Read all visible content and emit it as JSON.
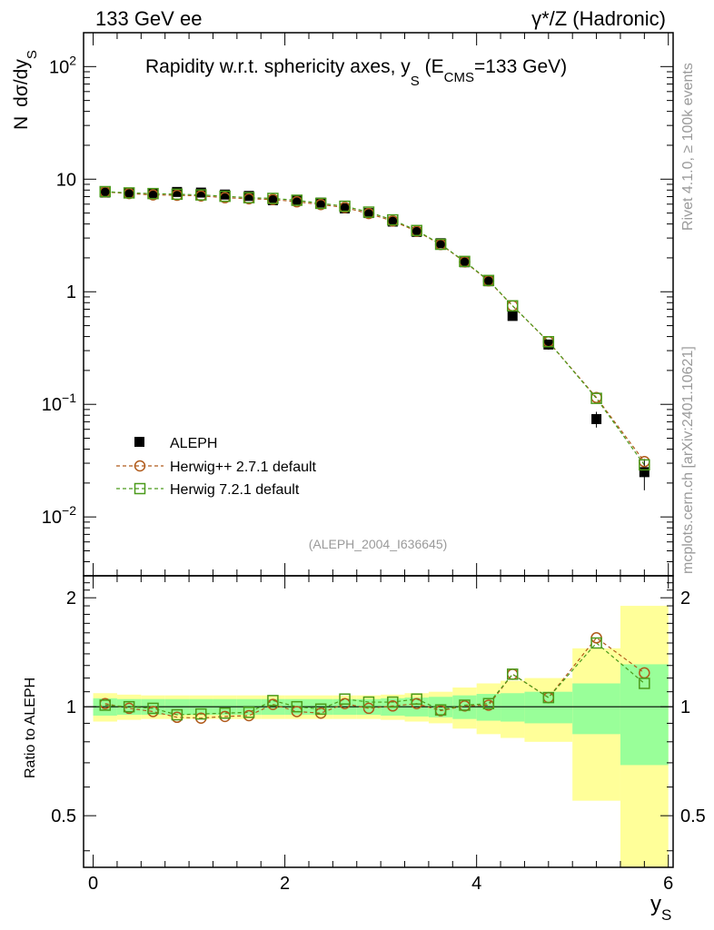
{
  "header": {
    "left": "133 GeV ee",
    "right": "γ*/Z (Hadronic)"
  },
  "side_texts": {
    "rivet": "Rivet 4.1.0, ≥ 100k events",
    "mcplots": "mcplots.cern.ch [arXiv:2401.10621]"
  },
  "chart_data": {
    "type": "scatter",
    "title": "Rapidity w.r.t. sphericity axes, y_S (E_CMS=133 GeV)",
    "title_parts": {
      "main": "Rapidity w.r.t. sphericity axes, y",
      "sub_s": "S",
      "open": " (E",
      "sub_cms": "CMS",
      "close": "=133 GeV)"
    },
    "analysis_id": "(ALEPH_2004_I636645)",
    "ylabel_parts": {
      "n": "N",
      "main": "dσ/dy",
      "sub": "S"
    },
    "xlabel_parts": {
      "main": "y",
      "sub": "S"
    },
    "ratio_ylabel": "Ratio to ALEPH",
    "xlim": [
      -0.1,
      6.05
    ],
    "main_ylim_log": [
      0.003,
      200
    ],
    "ratio_ylim": [
      0.36,
      2.3
    ],
    "x_ticks": [
      "0",
      "2",
      "4",
      "6"
    ],
    "main_ytick_labels": [
      {
        "value": 100,
        "base": "10",
        "exp": "2"
      },
      {
        "value": 10,
        "base": "10",
        "exp": ""
      },
      {
        "value": 1,
        "base": "1",
        "exp": ""
      },
      {
        "value": 0.1,
        "base": "10",
        "exp": "−1"
      },
      {
        "value": 0.01,
        "base": "10",
        "exp": "−2"
      }
    ],
    "ratio_ytick_labels": [
      "2",
      "1",
      "0.5"
    ],
    "ratio_yticks": [
      2,
      1,
      0.5
    ],
    "legend_position": "lower-left",
    "x": [
      0.125,
      0.375,
      0.625,
      0.875,
      1.125,
      1.375,
      1.625,
      1.875,
      2.125,
      2.375,
      2.625,
      2.875,
      3.125,
      3.375,
      3.625,
      3.875,
      4.125,
      4.375,
      4.75,
      5.25,
      5.75
    ],
    "bin_edges": [
      0,
      0.25,
      0.5,
      0.75,
      1.0,
      1.25,
      1.5,
      1.75,
      2.0,
      2.25,
      2.5,
      2.75,
      3.0,
      3.25,
      3.5,
      3.75,
      4.0,
      4.25,
      4.5,
      5.0,
      5.5,
      6.0
    ],
    "series": [
      {
        "name": "ALEPH",
        "marker": "filled-square",
        "color": "#000000",
        "values": [
          7.6,
          7.5,
          7.45,
          7.7,
          7.6,
          7.3,
          7.1,
          6.5,
          6.5,
          6.2,
          5.5,
          5.0,
          4.2,
          3.4,
          2.7,
          1.83,
          1.24,
          0.61,
          0.34,
          0.074,
          0.025
        ]
      },
      {
        "name": "Herwig++ 2.7.1 default",
        "marker": "open-circle",
        "color": "#b05a1a",
        "values": [
          7.7,
          7.45,
          7.25,
          7.2,
          7.1,
          6.85,
          6.7,
          6.6,
          6.3,
          5.95,
          5.6,
          4.95,
          4.25,
          3.45,
          2.63,
          1.84,
          1.25,
          0.75,
          0.36,
          0.115,
          0.031
        ],
        "ratio": [
          1.02,
          0.99,
          0.97,
          0.935,
          0.93,
          0.94,
          0.945,
          1.015,
          0.97,
          0.96,
          1.02,
          0.99,
          1.005,
          1.02,
          0.975,
          1.005,
          1.01,
          1.23,
          1.06,
          1.55,
          1.24
        ]
      },
      {
        "name": "Herwig 7.2.1 default",
        "marker": "open-square",
        "color": "#4a9a1a",
        "values": [
          7.75,
          7.55,
          7.45,
          7.35,
          7.25,
          7.05,
          6.85,
          6.75,
          6.5,
          6.1,
          5.75,
          5.1,
          4.35,
          3.5,
          2.64,
          1.86,
          1.26,
          0.75,
          0.36,
          0.113,
          0.029
        ],
        "ratio": [
          1.01,
          1.0,
          0.99,
          0.95,
          0.955,
          0.96,
          0.965,
          1.04,
          1.0,
          0.985,
          1.05,
          1.03,
          1.03,
          1.05,
          0.98,
          1.01,
          1.02,
          1.23,
          1.06,
          1.5,
          1.16
        ]
      }
    ],
    "data_errors_rel": [
      0.055,
      0.05,
      0.05,
      0.05,
      0.05,
      0.05,
      0.05,
      0.05,
      0.05,
      0.05,
      0.05,
      0.05,
      0.055,
      0.06,
      0.065,
      0.075,
      0.085,
      0.09,
      0.1,
      0.16,
      0.31
    ],
    "data_errors_rel_total": [
      0.09,
      0.08,
      0.075,
      0.075,
      0.075,
      0.075,
      0.075,
      0.075,
      0.075,
      0.075,
      0.075,
      0.075,
      0.08,
      0.09,
      0.1,
      0.13,
      0.16,
      0.18,
      0.2,
      0.45,
      0.9
    ],
    "band_colors": {
      "stat": "#99ff99",
      "total": "#ffff99"
    }
  }
}
